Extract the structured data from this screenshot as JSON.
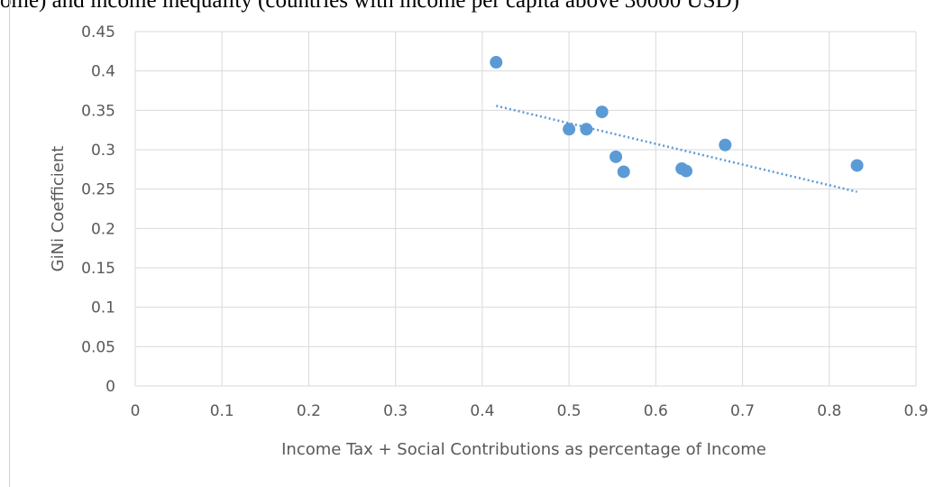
{
  "caption": "ome) and income inequality (countries with income per capita above 30000 USD)",
  "chart_data": {
    "type": "scatter",
    "title": "",
    "xlabel": "Income Tax + Social Contributions as percentage of Income",
    "ylabel": "GiNi Coefficient",
    "xlim": [
      0,
      0.9
    ],
    "ylim": [
      0,
      0.45
    ],
    "x_ticks": [
      "0",
      "0.1",
      "0.2",
      "0.3",
      "0.4",
      "0.5",
      "0.6",
      "0.7",
      "0.8",
      "0.9"
    ],
    "y_ticks": [
      "0",
      "0.05",
      "0.1",
      "0.15",
      "0.2",
      "0.25",
      "0.3",
      "0.35",
      "0.4",
      "0.45"
    ],
    "grid": true,
    "points": [
      {
        "x": 0.416,
        "y": 0.411
      },
      {
        "x": 0.5,
        "y": 0.326
      },
      {
        "x": 0.52,
        "y": 0.326
      },
      {
        "x": 0.538,
        "y": 0.348
      },
      {
        "x": 0.554,
        "y": 0.291
      },
      {
        "x": 0.563,
        "y": 0.272
      },
      {
        "x": 0.63,
        "y": 0.276
      },
      {
        "x": 0.635,
        "y": 0.273
      },
      {
        "x": 0.68,
        "y": 0.306
      },
      {
        "x": 0.832,
        "y": 0.28
      }
    ],
    "trendline": {
      "type": "linear",
      "style": "dotted"
    },
    "colors": {
      "points": "#5b9bd5",
      "trendline": "#5b9bd5",
      "grid": "#d9d9d9",
      "text": "#595959"
    }
  }
}
